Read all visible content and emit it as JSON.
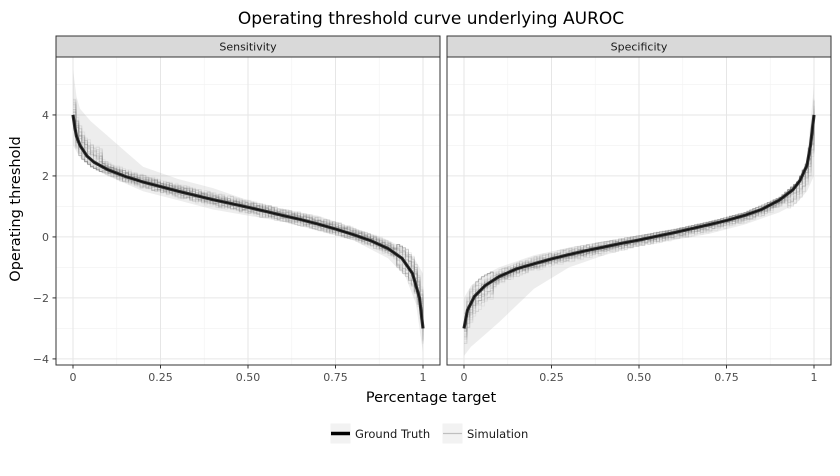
{
  "chart_data": {
    "type": "line",
    "title": "Operating threshold curve underlying AUROC",
    "xlabel": "Percentage target",
    "ylabel": "Operating threshold",
    "xlim": [
      0,
      1
    ],
    "ylim": [
      -4.2,
      5.9
    ],
    "x_ticks": [
      0,
      0.25,
      0.5,
      0.75,
      1
    ],
    "x_tick_labels": [
      "0",
      "0.25",
      "0.50",
      "0.75",
      "1"
    ],
    "y_ticks": [
      -4,
      -2,
      0,
      2,
      4
    ],
    "y_tick_labels": [
      "−4",
      "−2",
      "0",
      "2",
      "4"
    ],
    "grid": true,
    "legend_position": "bottom",
    "legend": [
      {
        "label": "Ground Truth",
        "color": "#000000"
      },
      {
        "label": "Simulation",
        "color": "#bbbbbb"
      }
    ],
    "panels": [
      {
        "strip": "Sensitivity",
        "series": [
          {
            "name": "Ground Truth",
            "x": [
              0,
              0.005,
              0.01,
              0.02,
              0.04,
              0.06,
              0.1,
              0.15,
              0.2,
              0.25,
              0.3,
              0.35,
              0.4,
              0.45,
              0.5,
              0.55,
              0.6,
              0.65,
              0.7,
              0.75,
              0.8,
              0.85,
              0.9,
              0.94,
              0.97,
              0.99,
              1.0
            ],
            "y": [
              4.0,
              3.6,
              3.3,
              3.0,
              2.65,
              2.45,
              2.2,
              1.98,
              1.8,
              1.65,
              1.5,
              1.36,
              1.22,
              1.1,
              0.97,
              0.84,
              0.7,
              0.57,
              0.42,
              0.26,
              0.08,
              -0.12,
              -0.38,
              -0.7,
              -1.2,
              -2.0,
              -3.0
            ]
          },
          {
            "name": "Simulation",
            "x": [
              0,
              0.01,
              0.02,
              0.05,
              0.1,
              0.2,
              0.3,
              0.4,
              0.5,
              0.6,
              0.7,
              0.8,
              0.9,
              0.95,
              0.98,
              1.0
            ],
            "y_upper": [
              5.5,
              4.6,
              4.2,
              3.8,
              3.3,
              2.3,
              1.9,
              1.6,
              1.2,
              0.9,
              0.7,
              0.3,
              -0.1,
              -0.4,
              -0.8,
              -1.2
            ],
            "y_lower": [
              3.0,
              2.8,
              2.6,
              2.3,
              2.0,
              1.5,
              1.2,
              0.9,
              0.7,
              0.5,
              0.2,
              -0.1,
              -0.7,
              -1.3,
              -2.2,
              -3.8
            ]
          }
        ]
      },
      {
        "strip": "Specificity",
        "series": [
          {
            "name": "Ground Truth",
            "x": [
              0,
              0.01,
              0.03,
              0.06,
              0.1,
              0.15,
              0.2,
              0.25,
              0.3,
              0.35,
              0.4,
              0.45,
              0.5,
              0.55,
              0.6,
              0.65,
              0.7,
              0.75,
              0.8,
              0.85,
              0.9,
              0.94,
              0.96,
              0.98,
              0.99,
              1.0
            ],
            "y": [
              -3.0,
              -2.4,
              -1.95,
              -1.6,
              -1.3,
              -1.05,
              -0.88,
              -0.72,
              -0.58,
              -0.45,
              -0.33,
              -0.21,
              -0.1,
              0.02,
              0.14,
              0.27,
              0.4,
              0.54,
              0.7,
              0.9,
              1.2,
              1.55,
              1.85,
              2.35,
              3.0,
              4.0
            ]
          },
          {
            "name": "Simulation",
            "x": [
              0,
              0.02,
              0.05,
              0.1,
              0.2,
              0.3,
              0.4,
              0.5,
              0.6,
              0.7,
              0.8,
              0.9,
              0.95,
              0.98,
              1.0
            ],
            "y_upper": [
              -2.0,
              -1.6,
              -1.3,
              -1.0,
              -0.6,
              -0.35,
              -0.15,
              0.05,
              0.25,
              0.5,
              0.8,
              1.3,
              1.8,
              2.5,
              5.0
            ],
            "y_lower": [
              -3.9,
              -3.6,
              -3.3,
              -2.8,
              -1.7,
              -1.0,
              -0.6,
              -0.3,
              -0.1,
              0.1,
              0.4,
              0.8,
              1.1,
              1.5,
              2.0
            ]
          }
        ]
      }
    ]
  }
}
